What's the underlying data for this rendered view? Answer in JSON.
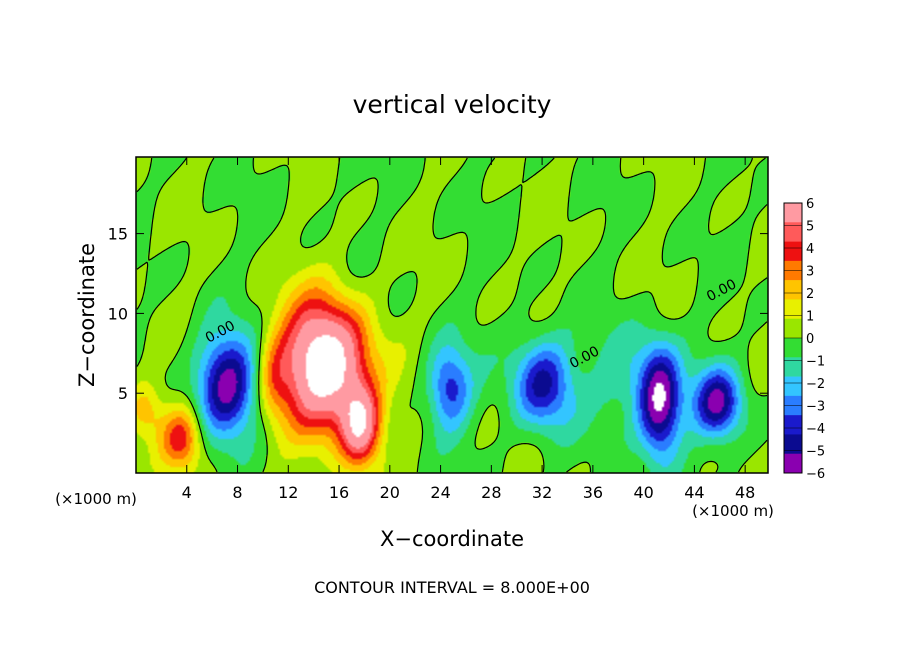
{
  "chart_data": {
    "type": "heatmap",
    "title": "vertical velocity",
    "xlabel": "X−coordinate",
    "ylabel": "Z−coordinate",
    "x_unit_left": "(×1000 m)",
    "x_unit_right": "(×1000 m)",
    "xlim": [
      0,
      49.8
    ],
    "ylim": [
      0,
      19.8
    ],
    "x_ticks": [
      4,
      8,
      12,
      16,
      20,
      24,
      28,
      32,
      36,
      40,
      44,
      48
    ],
    "y_ticks": [
      5,
      10,
      15
    ],
    "footer": "CONTOUR INTERVAL = 8.000E+00",
    "contour_labels": [
      {
        "text": "0.00",
        "x": 6.8,
        "y": 8.6
      },
      {
        "text": "0.00",
        "x": 35.5,
        "y": 7.0
      },
      {
        "text": "0.00",
        "x": 46.3,
        "y": 11.2
      }
    ],
    "colorbar": {
      "levels": [
        6,
        5,
        4,
        3,
        2,
        1,
        0,
        -1,
        -2,
        -3,
        -4,
        -5,
        -6
      ],
      "labels": [
        "6",
        "5",
        "4",
        "3",
        "2",
        "1",
        "0",
        "−1",
        "−2",
        "−3",
        "−4",
        "−5",
        "−6"
      ],
      "colors": [
        "#ff9aa2",
        "#ff5a5a",
        "#ee1111",
        "#ff7a00",
        "#ffc400",
        "#e8f000",
        "#9ae600",
        "#33dd33",
        "#2fd8a0",
        "#33c5ff",
        "#2a7dff",
        "#1a1acc",
        "#0b0b90",
        "#8a00b0"
      ]
    },
    "features": [
      {
        "kind": "updraft",
        "x": 14.8,
        "y": 6.8,
        "rx": 3.4,
        "ry": 4.0,
        "peak": 10
      },
      {
        "kind": "updraft",
        "x": 17.7,
        "y": 3.0,
        "rx": 1.6,
        "ry": 2.5,
        "peak": 7
      },
      {
        "kind": "updraft",
        "x": 3.6,
        "y": 2.2,
        "rx": 1.6,
        "ry": 2.0,
        "peak": 4.5
      },
      {
        "kind": "updraft",
        "x": 0.7,
        "y": 4.0,
        "rx": 1.4,
        "ry": 1.8,
        "peak": 2.5
      },
      {
        "kind": "updraft",
        "x": 10.8,
        "y": 6.0,
        "rx": 1.2,
        "ry": 2.6,
        "peak": 2.0
      },
      {
        "kind": "downdraft",
        "x": 7.2,
        "y": 5.6,
        "rx": 2.4,
        "ry": 3.1,
        "peak": -6.5
      },
      {
        "kind": "downdraft",
        "x": 24.7,
        "y": 5.3,
        "rx": 1.7,
        "ry": 2.6,
        "peak": -4.6
      },
      {
        "kind": "downdraft",
        "x": 32.1,
        "y": 5.6,
        "rx": 2.4,
        "ry": 2.9,
        "peak": -5.3
      },
      {
        "kind": "downdraft",
        "x": 41.3,
        "y": 4.4,
        "rx": 1.7,
        "ry": 3.4,
        "peak": -7.5
      },
      {
        "kind": "downdraft",
        "x": 45.8,
        "y": 4.4,
        "rx": 1.9,
        "ry": 2.2,
        "peak": -6.0
      },
      {
        "kind": "downdraft",
        "x": 38.5,
        "y": 6.0,
        "rx": 2.5,
        "ry": 3.0,
        "peak": -1.8
      }
    ]
  }
}
